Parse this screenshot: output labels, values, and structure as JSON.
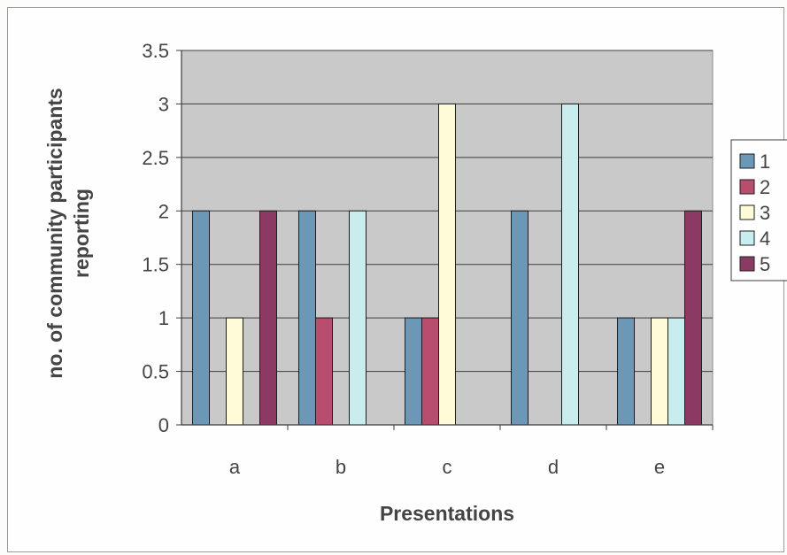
{
  "chart_data": {
    "type": "bar",
    "title": "",
    "xlabel": "Presentations",
    "ylabel": "no. of community participants reporting",
    "ylabel_lines": [
      "no. of community participants",
      "reporting"
    ],
    "categories": [
      "a",
      "b",
      "c",
      "d",
      "e"
    ],
    "ylim": [
      0,
      3.5
    ],
    "yticks": [
      "0",
      "0.5",
      "1",
      "1.5",
      "2",
      "2.5",
      "3",
      "3.5"
    ],
    "grid": true,
    "legend_position": "right",
    "series": [
      {
        "name": "1",
        "color": "#6c98b8",
        "values": [
          2,
          2,
          1,
          2,
          1
        ]
      },
      {
        "name": "2",
        "color": "#b84d6e",
        "values": [
          0,
          1,
          1,
          0,
          0
        ]
      },
      {
        "name": "3",
        "color": "#fdfbd8",
        "values": [
          1,
          0,
          3,
          0,
          1
        ]
      },
      {
        "name": "4",
        "color": "#c9ecef",
        "values": [
          0,
          2,
          0,
          3,
          1
        ]
      },
      {
        "name": "5",
        "color": "#8a3a63",
        "values": [
          2,
          0,
          0,
          0,
          2
        ]
      }
    ],
    "plot_background": "#c9c9c9"
  }
}
